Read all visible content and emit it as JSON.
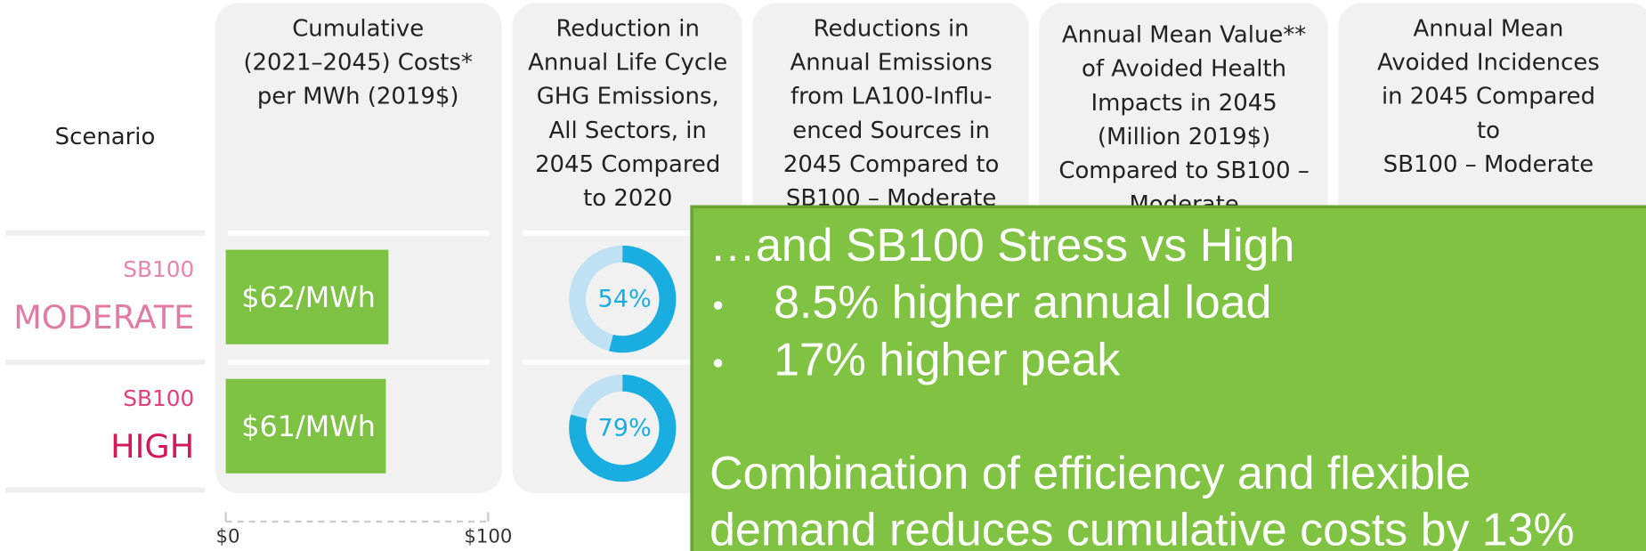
{
  "scenario_header": "Scenario",
  "headers": [
    [
      "Cumulative",
      "(2021–2045) Costs*",
      "per MWh (2019$)"
    ],
    [
      "Reduction in",
      "Annual Life Cycle",
      "GHG Emissions,",
      "All Sectors, in",
      "2045 Compared",
      "to 2020"
    ],
    [
      "Reductions in",
      "Annual Emissions",
      "from LA100-Influ-",
      "enced Sources in",
      "2045 Compared to",
      "SB100 – Moderate"
    ],
    [
      "Annual Mean Value**",
      "of Avoided Health",
      "Impacts in 2045",
      "(Million 2019$)",
      "Compared to SB100 –",
      "Moderate"
    ],
    [
      "Annual Mean",
      "Avoided Incidences",
      "in 2045 Compared",
      "to",
      "SB100 – Moderate"
    ]
  ],
  "rows": [
    {
      "tag": "SB100",
      "name": "MODERATE",
      "cost": {
        "value": 62,
        "label": "$62/MWh"
      },
      "ghg": {
        "value": 54,
        "label": "54%"
      }
    },
    {
      "tag": "SB100",
      "name": "HIGH",
      "cost": {
        "value": 61,
        "label": "$61/MWh"
      },
      "ghg": {
        "value": 79,
        "label": "79%"
      }
    }
  ],
  "cost_axis": {
    "min": {
      "value": 0,
      "label": "$0"
    },
    "max": {
      "value": 100,
      "label": "$100"
    }
  },
  "overlay": {
    "title": "…and SB100 Stress vs High",
    "bullets": [
      "8.5% higher annual load",
      "17% higher peak"
    ],
    "body": [
      "Combination of efficiency and flexible",
      "demand reduces cumulative costs by 13%"
    ]
  }
}
